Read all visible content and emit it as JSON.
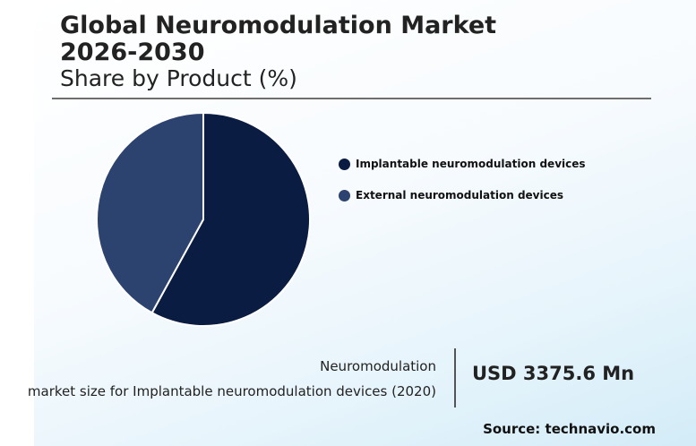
{
  "header": {
    "title": "Global Neuromodulation Market 2026-2030",
    "subtitle": "Share by Product (%)"
  },
  "chart_data": {
    "type": "pie",
    "series": [
      {
        "name": "Implantable neuromodulation devices",
        "value": 58,
        "color": "#0a1c42"
      },
      {
        "name": "External neuromodulation devices",
        "value": 42,
        "color": "#2c426f"
      }
    ],
    "legend_position": "right"
  },
  "stat": {
    "label_line1": "Neuromodulation",
    "label_line2": "market size for Implantable neuromodulation devices (2020)",
    "value": "USD 3375.6 Mn"
  },
  "footer": {
    "source": "Source: technavio.com"
  }
}
